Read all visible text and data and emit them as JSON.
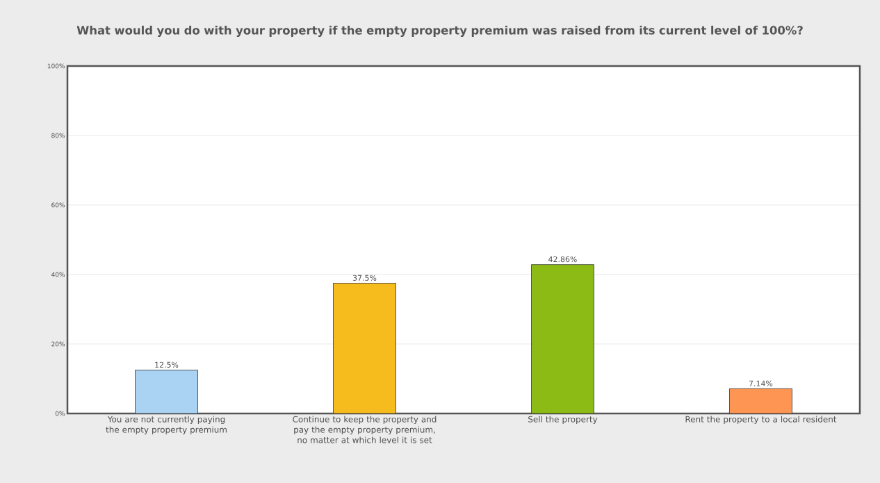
{
  "chart_data": {
    "type": "bar",
    "title": "What would you do with your property if the empty property premium was raised from its current level of 100%?",
    "categories": [
      "You are not currently paying the empty property premium",
      "Continue to keep the property and pay the empty property premium, no matter at which level it is set",
      "Sell the property",
      "Rent the property to a local resident"
    ],
    "values": [
      12.5,
      37.5,
      42.86,
      7.14
    ],
    "colors": [
      "#a9d2f3",
      "#f6bb1c",
      "#8bbb14",
      "#ff9553"
    ],
    "value_labels": [
      "12.5%",
      "37.5%",
      "42.86%",
      "7.14%"
    ],
    "ylim": [
      0,
      100
    ],
    "yticks": [
      {
        "value": 0,
        "label": "0%"
      },
      {
        "value": 20,
        "label": "20%"
      },
      {
        "value": 40,
        "label": "40%"
      },
      {
        "value": 60,
        "label": "60%"
      },
      {
        "value": 80,
        "label": "80%"
      },
      {
        "value": 100,
        "label": "100%"
      }
    ],
    "grid": "y"
  }
}
